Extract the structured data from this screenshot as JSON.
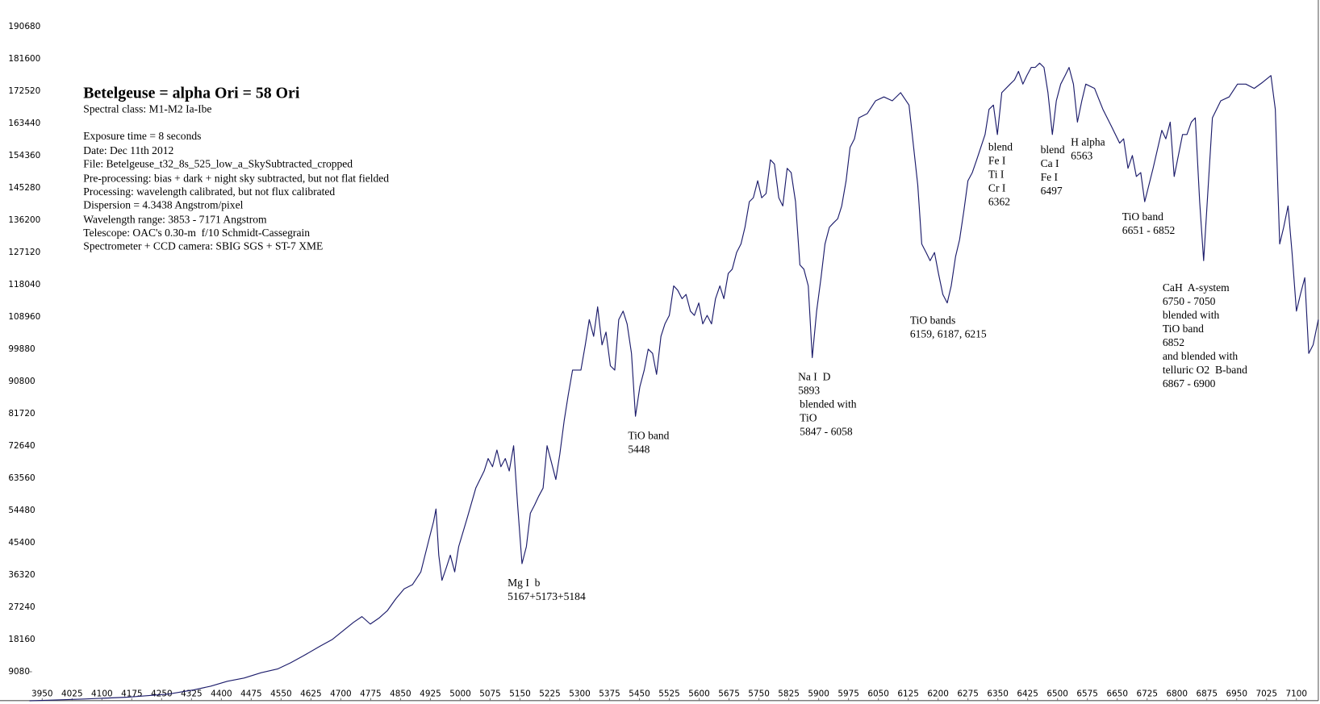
{
  "chart_data": {
    "type": "line",
    "title": "Betelgeuse = alpha Ori = 58 Ori",
    "info": [
      "Spectral class: M1-M2 Ia-Ibe",
      "Exposure time = 8 seconds",
      "Date: Dec 11th 2012",
      "File: Betelgeuse_t32_8s_525_low_a_SkySubtracted_cropped",
      "Pre-processing: bias + dark + night sky subtracted, but not flat fielded",
      "Processing: wavelength calibrated, but not flux calibrated",
      "Dispersion = 4.3438 Angstrom/pixel",
      "Wavelength range: 3853 - 7171 Angstrom",
      "Telescope: OAC's 0.30-m  f/10 Schmidt-Cassegrain",
      "Spectrometer + CCD camera: SBIG SGS + ST-7 XME"
    ],
    "annotations": [
      {
        "lines": [
          "Mg I  b",
          "5167+5173+5184"
        ]
      },
      {
        "lines": [
          "TiO band",
          "5448"
        ]
      },
      {
        "lines": [
          "Na I  D",
          "5893",
          "blended with",
          "TiO",
          "5847 - 6058"
        ]
      },
      {
        "lines": [
          "TiO bands",
          "6159, 6187, 6215"
        ]
      },
      {
        "lines": [
          "blend",
          "Fe I",
          "Ti I",
          "Cr I",
          "6362"
        ]
      },
      {
        "lines": [
          "blend",
          "Ca I",
          "Fe I",
          "6497"
        ]
      },
      {
        "lines": [
          "H alpha",
          "6563"
        ]
      },
      {
        "lines": [
          "TiO band",
          "6651 - 6852"
        ]
      },
      {
        "lines": [
          "CaH  A-system",
          "6750 - 7050",
          "blended with",
          "TiO band",
          "6852",
          "and blended with",
          "telluric O2  B-band",
          "6867 - 6900"
        ]
      }
    ],
    "color": "#1c1c6b",
    "xlim": [
      3918,
      7155
    ],
    "ylim": [
      0,
      198180
    ],
    "xticks": [
      3950,
      4025,
      4100,
      4175,
      4250,
      4325,
      4400,
      4475,
      4550,
      4625,
      4700,
      4775,
      4850,
      4925,
      5000,
      5075,
      5150,
      5225,
      5300,
      5375,
      5450,
      5525,
      5600,
      5675,
      5750,
      5825,
      5900,
      5975,
      6050,
      6125,
      6200,
      6275,
      6350,
      6425,
      6500,
      6575,
      6650,
      6725,
      6800,
      6875,
      6950,
      7025,
      7100
    ],
    "yticks": [
      9080,
      18160,
      27240,
      36320,
      45400,
      54480,
      63560,
      72640,
      81720,
      90800,
      99880,
      108960,
      118040,
      127120,
      136200,
      145280,
      154360,
      163440,
      172520,
      181600,
      190680
    ],
    "x": [
      3918,
      4056,
      4161,
      4267,
      4331,
      4373,
      4415,
      4457,
      4500,
      4542,
      4574,
      4605,
      4648,
      4679,
      4700,
      4732,
      4753,
      4774,
      4796,
      4817,
      4838,
      4859,
      4880,
      4901,
      4922,
      4933,
      4939,
      4946,
      4954,
      4965,
      4975,
      4986,
      4996,
      5018,
      5039,
      5060,
      5070,
      5081,
      5092,
      5102,
      5113,
      5123,
      5134,
      5144,
      5155,
      5166,
      5176,
      5187,
      5197,
      5208,
      5218,
      5229,
      5240,
      5250,
      5261,
      5271,
      5282,
      5303,
      5314,
      5324,
      5335,
      5345,
      5356,
      5366,
      5377,
      5388,
      5398,
      5409,
      5419,
      5430,
      5440,
      5451,
      5462,
      5472,
      5483,
      5493,
      5504,
      5514,
      5525,
      5536,
      5546,
      5557,
      5567,
      5578,
      5588,
      5599,
      5609,
      5620,
      5631,
      5641,
      5652,
      5662,
      5673,
      5683,
      5694,
      5705,
      5715,
      5726,
      5736,
      5747,
      5757,
      5768,
      5779,
      5789,
      5800,
      5810,
      5821,
      5831,
      5842,
      5853,
      5863,
      5874,
      5884,
      5895,
      5906,
      5916,
      5927,
      5937,
      5948,
      5958,
      5969,
      5979,
      5990,
      6001,
      6022,
      6043,
      6064,
      6085,
      6106,
      6127,
      6149,
      6159,
      6170,
      6180,
      6191,
      6201,
      6212,
      6223,
      6233,
      6244,
      6254,
      6265,
      6275,
      6286,
      6297,
      6318,
      6328,
      6339,
      6349,
      6360,
      6381,
      6392,
      6402,
      6413,
      6423,
      6434,
      6444,
      6455,
      6466,
      6476,
      6487,
      6497,
      6508,
      6519,
      6529,
      6540,
      6550,
      6561,
      6571,
      6593,
      6614,
      6635,
      6656,
      6666,
      6677,
      6688,
      6698,
      6709,
      6719,
      6740,
      6762,
      6772,
      6783,
      6793,
      6814,
      6825,
      6836,
      6846,
      6857,
      6867,
      6889,
      6910,
      6931,
      6952,
      6973,
      6994,
      7015,
      7036,
      7047,
      7058,
      7068,
      7079,
      7089,
      7100,
      7110,
      7121,
      7131,
      7142,
      7155
    ],
    "values": [
      900,
      1400,
      1900,
      2800,
      4000,
      5000,
      6400,
      7300,
      8800,
      9900,
      11600,
      13500,
      16300,
      18200,
      20100,
      23000,
      24600,
      22500,
      24200,
      26300,
      29600,
      32400,
      33600,
      37200,
      46600,
      51400,
      54900,
      41900,
      34800,
      38400,
      41900,
      37200,
      44300,
      52600,
      60800,
      65600,
      69100,
      66800,
      71500,
      66800,
      69100,
      65600,
      72700,
      56100,
      39500,
      44300,
      53700,
      56100,
      58500,
      60800,
      72700,
      68000,
      63200,
      70300,
      79800,
      86900,
      94000,
      94000,
      101100,
      108200,
      103500,
      111800,
      101100,
      104700,
      95200,
      94000,
      108200,
      110600,
      107000,
      98700,
      81000,
      89300,
      94000,
      99900,
      98700,
      92800,
      103500,
      107000,
      109400,
      117700,
      116500,
      114100,
      115300,
      110600,
      109400,
      112900,
      107000,
      109400,
      107000,
      114100,
      117700,
      114100,
      121200,
      122400,
      127100,
      129500,
      134200,
      141400,
      142500,
      147300,
      142500,
      143700,
      153200,
      152000,
      142500,
      140200,
      150800,
      149600,
      141400,
      123600,
      122400,
      117700,
      97500,
      110600,
      120000,
      129500,
      134200,
      135400,
      136600,
      140200,
      147300,
      156700,
      159100,
      165000,
      166200,
      169800,
      170900,
      169800,
      172100,
      168600,
      146100,
      129500,
      127100,
      124800,
      127100,
      121200,
      115300,
      112900,
      117700,
      126000,
      130700,
      139000,
      147300,
      149600,
      153200,
      160300,
      167400,
      168600,
      160300,
      172100,
      174500,
      175700,
      178100,
      174500,
      176900,
      179200,
      179200,
      180400,
      179200,
      172100,
      160300,
      169800,
      174500,
      176900,
      179200,
      174500,
      163800,
      169800,
      174500,
      173300,
      167400,
      162700,
      157900,
      159100,
      150800,
      154400,
      148500,
      149600,
      141400,
      150800,
      161500,
      159100,
      163800,
      148500,
      160300,
      160300,
      163800,
      165000,
      141400,
      124800,
      165000,
      169800,
      170900,
      174500,
      174500,
      173300,
      175000,
      176900,
      167400,
      129500,
      134200,
      140200,
      127100,
      110600,
      115300,
      120000,
      98700,
      101100,
      108200
    ]
  }
}
